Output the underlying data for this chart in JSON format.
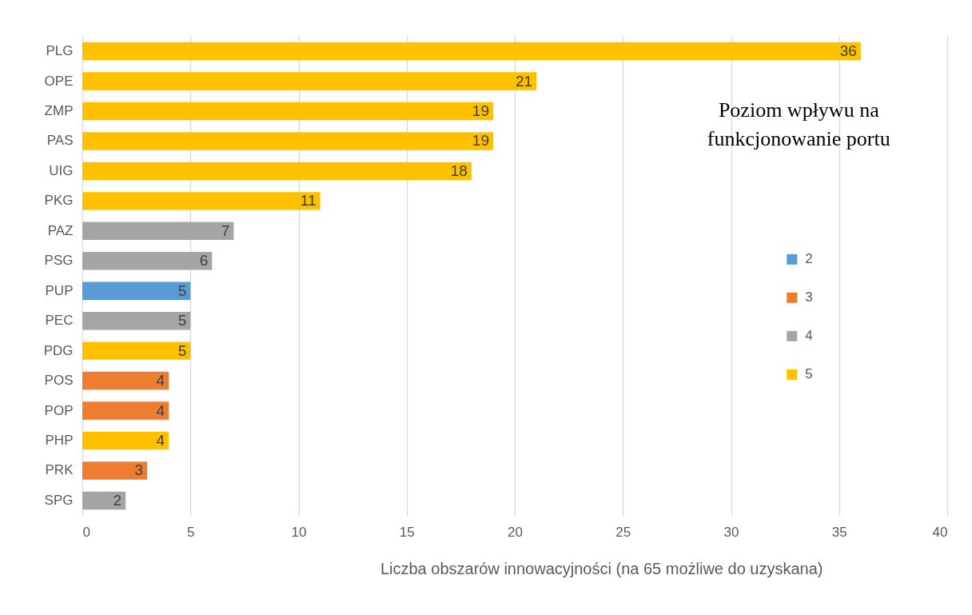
{
  "chart_data": {
    "type": "bar",
    "orientation": "horizontal",
    "stacked": true,
    "categories": [
      "PLG",
      "OPE",
      "ZMP",
      "PAS",
      "UIG",
      "PKG",
      "PAZ",
      "PSG",
      "PUP",
      "PEC",
      "PDG",
      "POS",
      "POP",
      "PHP",
      "PRK",
      "SPG"
    ],
    "series": [
      {
        "name": "2",
        "color": "#5b9bd5",
        "values": [
          null,
          null,
          null,
          null,
          null,
          null,
          null,
          null,
          5,
          null,
          null,
          null,
          null,
          null,
          null,
          null
        ]
      },
      {
        "name": "3",
        "color": "#ed7d31",
        "values": [
          null,
          null,
          null,
          null,
          null,
          null,
          null,
          null,
          null,
          null,
          null,
          4,
          4,
          null,
          3,
          null
        ]
      },
      {
        "name": "4",
        "color": "#a5a5a5",
        "values": [
          null,
          null,
          null,
          null,
          null,
          null,
          7,
          6,
          null,
          5,
          null,
          null,
          null,
          null,
          null,
          2
        ]
      },
      {
        "name": "5",
        "color": "#ffc000",
        "values": [
          36,
          21,
          19,
          19,
          18,
          11,
          null,
          null,
          null,
          null,
          5,
          null,
          null,
          4,
          null,
          null
        ]
      }
    ],
    "xlabel": "Liczba obszarów innowacyjności (na 65 możliwe do uzyskana)",
    "legend_title": "Poziom wpływu na funkcjonowanie portu",
    "xlim": [
      0,
      40
    ],
    "xticks": [
      0,
      5,
      10,
      15,
      20,
      25,
      30,
      35,
      40
    ],
    "grid": "x",
    "legend": "right",
    "data_labels": true
  }
}
